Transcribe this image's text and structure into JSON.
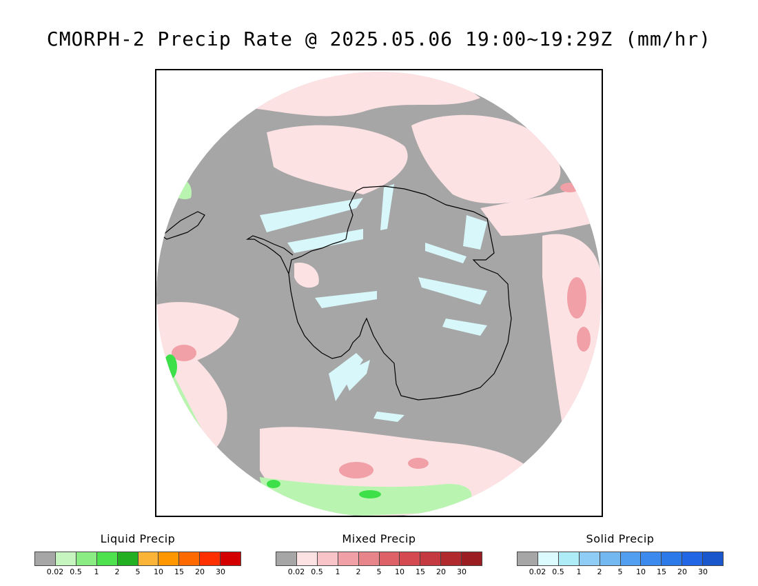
{
  "title": "CMORPH-2 Precip Rate @ 2025.05.06 19:00~19:29Z (mm/hr)",
  "map": {
    "projection": "south-polar-stereographic",
    "colors": {
      "no_precip": "#a6a6a6",
      "mixed_light": "#fde2e4",
      "mixed_moderate": "#f0a0a6",
      "solid_light": "#d8f7fa",
      "liquid_light": "#b9f5b0",
      "liquid_moderate": "#3ee04a",
      "coastline": "#000000"
    }
  },
  "legends": [
    {
      "name": "liquid",
      "title": "Liquid Precip",
      "colors": [
        "#a6a6a6",
        "#c6f5c0",
        "#8cec84",
        "#4ee24e",
        "#22b022",
        "#fbb438",
        "#ff9800",
        "#ff6a00",
        "#ff3000",
        "#d40000"
      ],
      "ticks": [
        "0.02",
        "0.5",
        "1",
        "2",
        "5",
        "10",
        "15",
        "20",
        "30"
      ]
    },
    {
      "name": "mixed",
      "title": "Mixed Precip",
      "colors": [
        "#a6a6a6",
        "#fde2e4",
        "#f8c4c8",
        "#f0a0a6",
        "#e8858a",
        "#dd6166",
        "#d44a50",
        "#c43a40",
        "#b02a2e",
        "#9a1e22"
      ],
      "ticks": [
        "0.02",
        "0.5",
        "1",
        "2",
        "5",
        "10",
        "15",
        "20",
        "30"
      ]
    },
    {
      "name": "solid",
      "title": "Solid Precip",
      "colors": [
        "#a6a6a6",
        "#dcfbff",
        "#aeecf8",
        "#90cdf6",
        "#74b8f2",
        "#529ef0",
        "#3c8aee",
        "#2c7aea",
        "#2266e6",
        "#1a56cc"
      ],
      "ticks": [
        "0.02",
        "0.5",
        "1",
        "2",
        "5",
        "10",
        "15",
        "20",
        "30"
      ]
    }
  ]
}
